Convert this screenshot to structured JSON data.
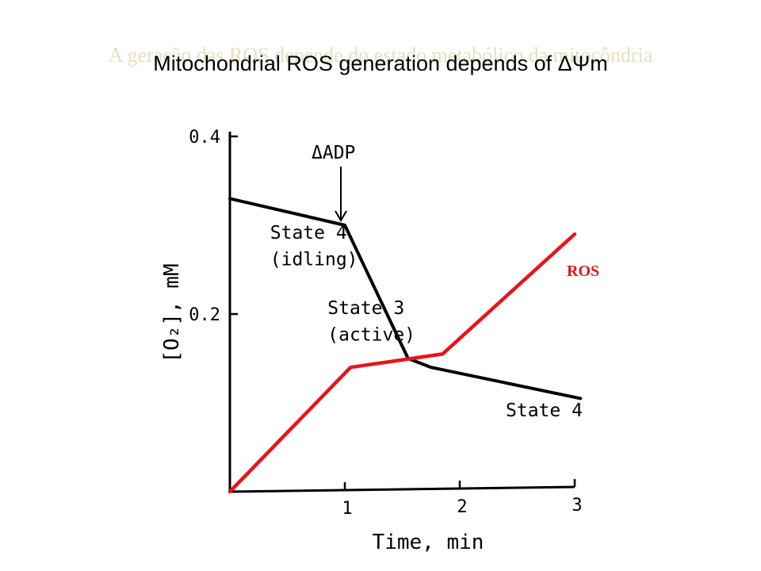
{
  "slide": {
    "background_title": "A geração das ROS depende do estado metabólico da mitocôndria",
    "title": "Mitochondrial ROS generation depends of ΔΨm"
  },
  "chart_data": {
    "type": "line",
    "xlabel": "Time, min",
    "ylabel": "[O₂], mM",
    "xlim": [
      0,
      3
    ],
    "ylim": [
      0,
      0.4
    ],
    "x_ticks": [
      {
        "value": 1,
        "label": "1"
      },
      {
        "value": 2,
        "label": "2"
      },
      {
        "value": 3,
        "label": "3"
      }
    ],
    "y_ticks": [
      {
        "value": 0.2,
        "label": "0.2"
      },
      {
        "value": 0.4,
        "label": "0.4"
      }
    ],
    "grid": false,
    "legend": "none",
    "series": [
      {
        "color": "#000000",
        "points": [
          [
            0,
            0.33
          ],
          [
            1.0,
            0.3
          ],
          [
            1.55,
            0.15
          ],
          [
            1.75,
            0.14
          ],
          [
            3.05,
            0.105
          ]
        ]
      },
      {
        "name": "ROS",
        "color": "#e8141b",
        "points": [
          [
            0,
            0
          ],
          [
            1.05,
            0.14
          ],
          [
            1.85,
            0.155
          ],
          [
            3.0,
            0.29
          ]
        ]
      }
    ],
    "annotations": [
      {
        "text": "ΔADP",
        "x": 1.0,
        "y": 0.375,
        "arrow_to": [
          1.0,
          0.3
        ]
      },
      {
        "text": "State 4",
        "x": 0.35,
        "y": 0.285
      },
      {
        "text": "(idling)",
        "x": 0.35,
        "y": 0.255
      },
      {
        "text": "State 3",
        "x": 0.85,
        "y": 0.2
      },
      {
        "text": "(active)",
        "x": 0.85,
        "y": 0.17
      },
      {
        "text": "State 4",
        "x": 2.4,
        "y": 0.085
      }
    ]
  }
}
